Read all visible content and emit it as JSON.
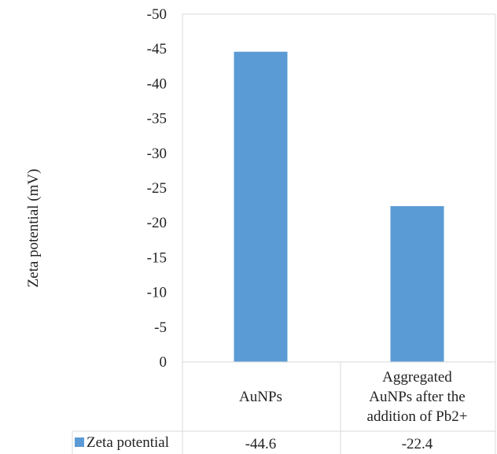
{
  "chart_data": {
    "type": "bar",
    "categories": [
      [
        "AuNPs"
      ],
      [
        "Aggregated",
        "AuNPs after the",
        "addition of Pb2+"
      ]
    ],
    "series": [
      {
        "name": "Zeta potential",
        "values": [
          -44.6,
          -22.4
        ],
        "color": "#5b9bd5"
      }
    ],
    "value_labels": [
      "-44.6",
      "-22.4"
    ],
    "title": "",
    "xlabel": "",
    "ylabel": "Zeta potential (mV)",
    "ylim": [
      0,
      -50
    ],
    "y_axis_reversed": true,
    "yticks": [
      0,
      -5,
      -10,
      -15,
      -20,
      -25,
      -30,
      -35,
      -40,
      -45,
      -50
    ],
    "grid": false,
    "legend": "data-table",
    "colors": {
      "bar": "#5b9bd5",
      "table_border": "#d9d9d9"
    }
  }
}
